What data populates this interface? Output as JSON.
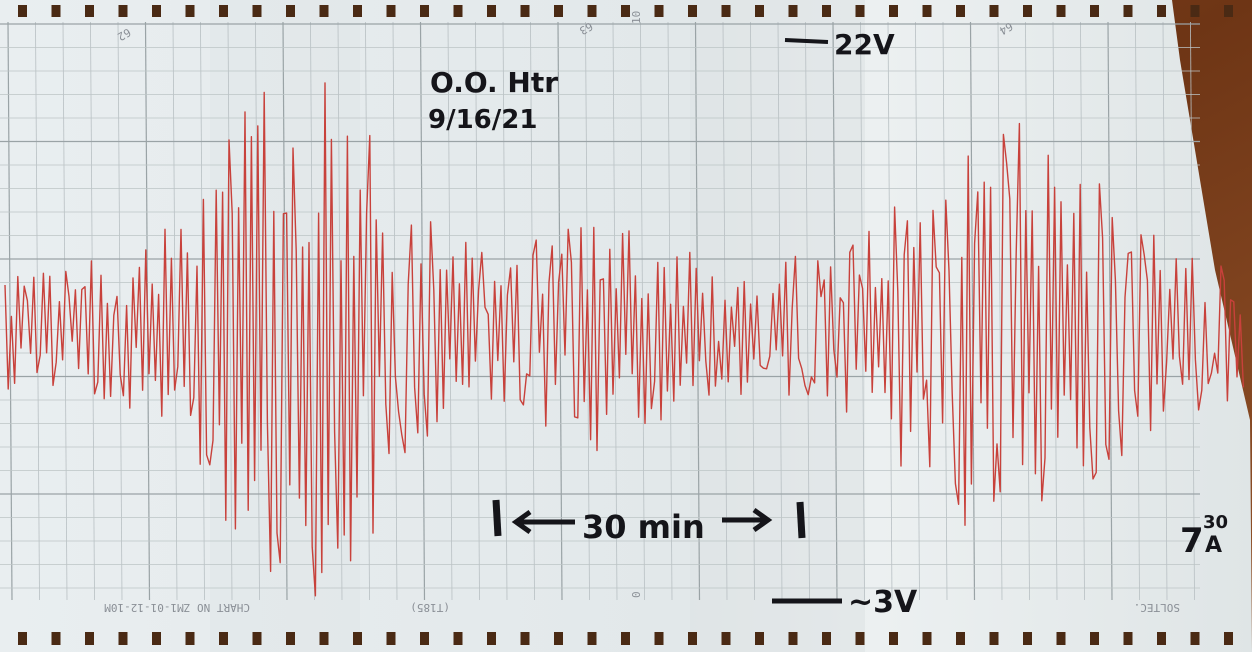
{
  "annotations": {
    "heater": "O.O. Htr",
    "date": "9/16/21",
    "top_level": "22V",
    "bottom_level": "~3V",
    "interval": "30 min",
    "time": {
      "hour": "7",
      "minutes": "30",
      "suffix": "A"
    }
  },
  "paper": {
    "chart_no": "CHART NO ZM1-01-12-10M",
    "code": "(T185)",
    "brand": "SOLTEC.",
    "scale_top": "0",
    "scale_bottom": "10",
    "marks": [
      "62",
      "63",
      "64"
    ]
  }
}
